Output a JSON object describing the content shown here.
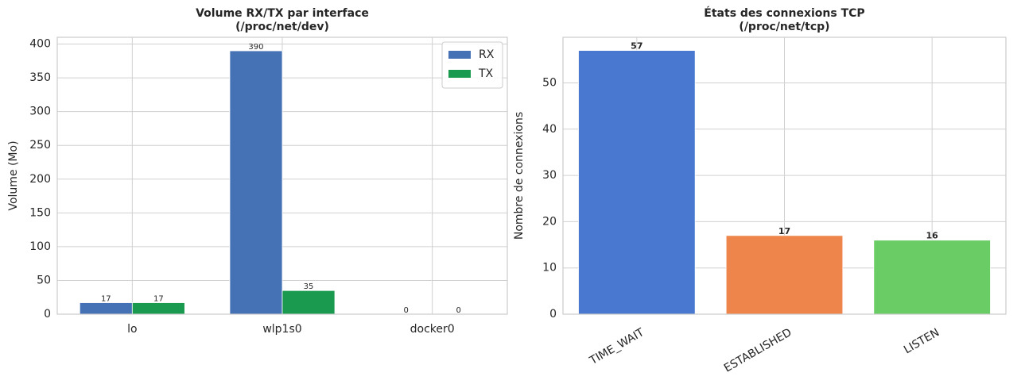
{
  "chart_data": [
    {
      "type": "grouped_bar",
      "title": "Volume RX/TX par interface",
      "subtitle": "(/proc/net/dev)",
      "y_label": "Volume (Mo)",
      "categories": [
        "lo",
        "wlp1s0",
        "docker0"
      ],
      "series": [
        {
          "name": "RX",
          "color": "#4472b4",
          "values": [
            17,
            390,
            0
          ]
        },
        {
          "name": "TX",
          "color": "#1a9a4e",
          "values": [
            17,
            35,
            0
          ]
        }
      ],
      "ylim": [
        0,
        410
      ],
      "yticks": [
        0,
        50,
        100,
        150,
        200,
        250,
        300,
        350,
        400
      ],
      "grid": true,
      "legend": "upper-right"
    },
    {
      "type": "bar",
      "title": "États des connexions TCP",
      "subtitle": "(/proc/net/tcp)",
      "y_label": "Nombre de connexions",
      "categories": [
        "TIME_WAIT",
        "ESTABLISHED",
        "LISTEN"
      ],
      "values": [
        57,
        17,
        16
      ],
      "colors": [
        "#4878cf",
        "#ee854a",
        "#6acc64"
      ],
      "ylim": [
        0,
        59.85
      ],
      "yticks": [
        0,
        10,
        20,
        30,
        40,
        50
      ],
      "grid": true
    }
  ]
}
